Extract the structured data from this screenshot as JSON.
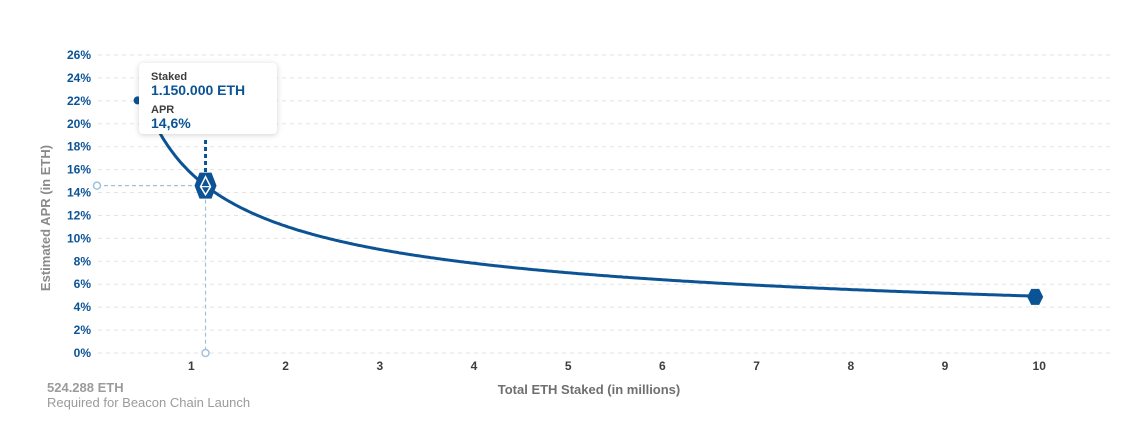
{
  "chart_data": {
    "type": "line",
    "ylabel": "Estimated APR (in ETH)",
    "xlabel": "Total ETH Staked  (in millions)",
    "y_ticks": [
      "0%",
      "2%",
      "4%",
      "6%",
      "8%",
      "10%",
      "12%",
      "14%",
      "16%",
      "18%",
      "20%",
      "22%",
      "24%",
      "26%"
    ],
    "x_ticks": [
      "1",
      "2",
      "3",
      "4",
      "5",
      "6",
      "7",
      "8",
      "9",
      "10"
    ],
    "ylim": [
      0,
      26
    ],
    "xlim": [
      0,
      11.16
    ],
    "series": [
      {
        "color": "#0b5394",
        "x": [
          0.524288,
          0.7,
          1.15,
          2,
          3,
          4,
          5,
          6,
          7,
          8,
          9,
          10
        ],
        "y": [
          21.6,
          18.7,
          14.6,
          11.1,
          9.0,
          7.8,
          7.0,
          6.4,
          5.9,
          5.5,
          5.2,
          4.9
        ]
      }
    ],
    "grid": true,
    "highlight": {
      "x": 1.15,
      "y": 14.6,
      "staked_label": "Staked",
      "staked_value": "1.150.000 ETH",
      "apr_label": "APR",
      "apr_value": "14,6%"
    },
    "end_marker": {
      "x": 10,
      "y": 4.9
    },
    "start_marker": {
      "x": 0.524288,
      "y": 21.6
    }
  },
  "footnote": {
    "amount": "524.288 ETH",
    "caption": "Required for Beacon Chain Launch"
  },
  "colors": {
    "accent": "#0b5394",
    "guide": "#9fc1dd",
    "grid": "#e3e3e3"
  }
}
